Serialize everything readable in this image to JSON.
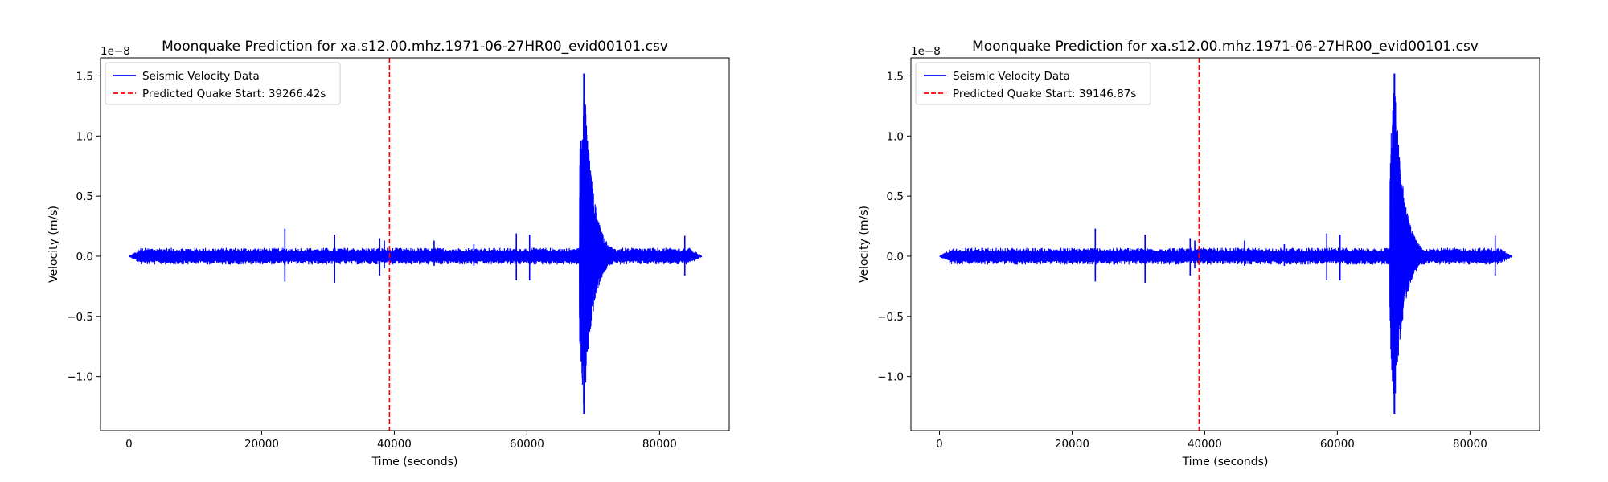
{
  "chart_data": [
    {
      "type": "line",
      "title": "Moonquake Prediction for xa.s12.00.mhz.1971-06-27HR00_evid00101.csv",
      "xlabel": "Time (seconds)",
      "ylabel": "Velocity (m/s)",
      "y_scale_label": "1e−8",
      "xlim": [
        -4300,
        90500
      ],
      "ylim": [
        -1.45,
        1.65
      ],
      "x_ticks": [
        0,
        20000,
        40000,
        60000,
        80000
      ],
      "x_tick_labels": [
        "0",
        "20000",
        "40000",
        "60000",
        "80000"
      ],
      "y_ticks": [
        -1.0,
        -0.5,
        0.0,
        0.5,
        1.0,
        1.5
      ],
      "y_tick_labels": [
        "−1.0",
        "−0.5",
        "0.0",
        "0.5",
        "1.0",
        "1.5"
      ],
      "grid": false,
      "legend_position": "top-left",
      "series": [
        {
          "name": "Seismic Velocity Data",
          "color": "#0000ff",
          "style": "solid",
          "noise_amplitude": 0.07,
          "spikes": [
            {
              "x": 23500,
              "high": 0.23,
              "low": -0.21
            },
            {
              "x": 31000,
              "high": 0.18,
              "low": -0.22
            },
            {
              "x": 37800,
              "high": 0.15,
              "low": -0.16
            },
            {
              "x": 38500,
              "high": 0.13,
              "low": -0.1
            },
            {
              "x": 46000,
              "high": 0.13,
              "low": -0.08
            },
            {
              "x": 52000,
              "high": 0.1,
              "low": -0.08
            },
            {
              "x": 58400,
              "high": 0.19,
              "low": -0.2
            },
            {
              "x": 60400,
              "high": 0.18,
              "low": -0.2
            },
            {
              "x": 83800,
              "high": 0.17,
              "low": -0.16
            }
          ],
          "event": {
            "start_x": 67900,
            "peak_x": 68600,
            "peak_high": 1.52,
            "peak_low": -1.31,
            "decay_end_x": 73000
          },
          "data_range": [
            0,
            86400
          ]
        },
        {
          "name": "Predicted Quake Start: 39266.42s",
          "color": "#ff0000",
          "style": "dashed",
          "vline_x": 39266.42
        }
      ]
    },
    {
      "type": "line",
      "title": "Moonquake Prediction for xa.s12.00.mhz.1971-06-27HR00_evid00101.csv",
      "xlabel": "Time (seconds)",
      "ylabel": "Velocity (m/s)",
      "y_scale_label": "1e−8",
      "xlim": [
        -4300,
        90500
      ],
      "ylim": [
        -1.45,
        1.65
      ],
      "x_ticks": [
        0,
        20000,
        40000,
        60000,
        80000
      ],
      "x_tick_labels": [
        "0",
        "20000",
        "40000",
        "60000",
        "80000"
      ],
      "y_ticks": [
        -1.0,
        -0.5,
        0.0,
        0.5,
        1.0,
        1.5
      ],
      "y_tick_labels": [
        "−1.0",
        "−0.5",
        "0.0",
        "0.5",
        "1.0",
        "1.5"
      ],
      "grid": false,
      "legend_position": "top-left",
      "series": [
        {
          "name": "Seismic Velocity Data",
          "color": "#0000ff",
          "style": "solid",
          "noise_amplitude": 0.07,
          "spikes": [
            {
              "x": 23500,
              "high": 0.23,
              "low": -0.21
            },
            {
              "x": 31000,
              "high": 0.18,
              "low": -0.22
            },
            {
              "x": 37800,
              "high": 0.15,
              "low": -0.16
            },
            {
              "x": 38500,
              "high": 0.13,
              "low": -0.1
            },
            {
              "x": 46000,
              "high": 0.13,
              "low": -0.08
            },
            {
              "x": 52000,
              "high": 0.1,
              "low": -0.08
            },
            {
              "x": 58400,
              "high": 0.19,
              "low": -0.2
            },
            {
              "x": 60400,
              "high": 0.18,
              "low": -0.2
            },
            {
              "x": 83800,
              "high": 0.17,
              "low": -0.16
            }
          ],
          "event": {
            "start_x": 67900,
            "peak_x": 68600,
            "peak_high": 1.52,
            "peak_low": -1.31,
            "decay_end_x": 73000
          },
          "data_range": [
            0,
            86400
          ]
        },
        {
          "name": "Predicted Quake Start: 39146.87s",
          "color": "#ff0000",
          "style": "dashed",
          "vline_x": 39146.87
        }
      ]
    }
  ]
}
